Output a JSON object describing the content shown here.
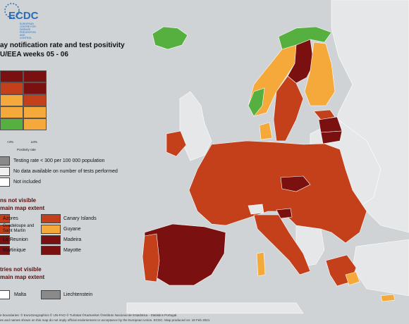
{
  "header": {
    "logo_text": "ECDC",
    "logo_caption": "EUROPEAN CENTRE FOR DISEASE PREVENTION AND CONTROL",
    "title_line1": "ay notification rate and test positivity",
    "title_line2": "U/EEA weeks 05 - 06"
  },
  "matrix_legend": {
    "x_tick_low": "<4%",
    "x_tick_high": "≥4%",
    "x_axis_label": "Positivity rate",
    "rows": [
      [
        "#7a1010",
        "#7a1010"
      ],
      [
        "#c4401a",
        "#7a1010"
      ],
      [
        "#f4a93a",
        "#c4401a"
      ],
      [
        "#f4a93a",
        "#f4a93a"
      ],
      [
        "#55b040",
        "#f4a93a"
      ]
    ]
  },
  "key_legend": [
    {
      "color": "#8a8a8a",
      "label": "Testing rate < 300 per 100 000 population"
    },
    {
      "color": "#f0f0f0",
      "label": "No data available on number of tests performed"
    },
    {
      "color": "#ffffff",
      "label": "Not included"
    }
  ],
  "regions_not_visible": {
    "heading_line1": "ns not visible",
    "heading_line2": "main map extent",
    "items": [
      {
        "label": "Azores",
        "color": "#c4401a"
      },
      {
        "label": "Canary Islands",
        "color": "#c4401a"
      },
      {
        "label": "Guadeloupe and Saint Martin",
        "color": "#c4401a"
      },
      {
        "label": "Guyane",
        "color": "#f4a93a"
      },
      {
        "label": "La Reunion",
        "color": "#7a1010"
      },
      {
        "label": "Madeira",
        "color": "#7a1010"
      },
      {
        "label": "Martinique",
        "color": "#7a1010"
      },
      {
        "label": "Mayotte",
        "color": "#7a1010"
      }
    ]
  },
  "countries_not_visible": {
    "heading_line1": "tries not visible",
    "heading_line2": "main map extent",
    "items": [
      {
        "label": "Malta",
        "color": "#ffffff"
      },
      {
        "label": "Liechtenstein",
        "color": "#8a8a8a"
      }
    ]
  },
  "footer": {
    "line1": "e boundaries: © EuroGeographics © UN-FAO © Turkstat ©Kartverket ©Instituto Nacional de Estatística - Statistics Portugal.",
    "line2": "es and names shown on this map do not imply official endorsement or acceptance by the European Union. ECDC. Map produced on: 18 Feb 2021"
  },
  "colors": {
    "dark_red": "#7a1010",
    "red": "#c4401a",
    "orange": "#f4a93a",
    "green": "#55b040",
    "grey": "#8a8a8a",
    "background": "#cfd3d6",
    "non_eu_land": "#e6e7e8"
  }
}
